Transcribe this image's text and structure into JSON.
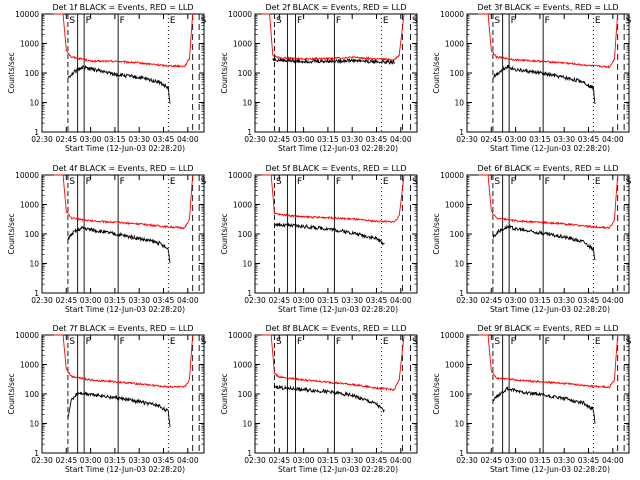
{
  "common": {
    "ylabel": "Counts/sec",
    "xlabel": "Start Time (12-Jun-03 02:28:20)",
    "x_ticks": [
      "02:30",
      "02:45",
      "03:00",
      "03:15",
      "03:30",
      "03:45",
      "04:00"
    ],
    "y_ticks": [
      "1",
      "10",
      "100",
      "1000",
      "10000"
    ],
    "series_colors": {
      "events": "#000000",
      "lld": "#ff0000"
    }
  },
  "chart_data": [
    {
      "type": "line",
      "title": "Det 1f BLACK = Events, RED = LLD",
      "marker_labels": [
        "S",
        "F",
        "F",
        "E",
        "S"
      ],
      "ylim": [
        1,
        10000
      ],
      "xlim": [
        "02:30",
        "04:10"
      ],
      "y_scale": "log",
      "series": [
        {
          "key": "lld",
          "color": "#ff0000",
          "points": [
            [
              "02:37",
              10000
            ],
            [
              "02:43",
              10000
            ],
            [
              "02:45",
              600
            ],
            [
              "02:48",
              350
            ],
            [
              "02:55",
              300
            ],
            [
              "03:00",
              250
            ],
            [
              "03:15",
              250
            ],
            [
              "03:30",
              220
            ],
            [
              "03:45",
              180
            ],
            [
              "03:58",
              170
            ],
            [
              "04:01",
              300
            ],
            [
              "04:03",
              10000
            ]
          ]
        },
        {
          "key": "events",
          "color": "#000000",
          "points": [
            [
              "02:46",
              70
            ],
            [
              "02:50",
              110
            ],
            [
              "02:55",
              160
            ],
            [
              "03:00",
              140
            ],
            [
              "03:15",
              90
            ],
            [
              "03:30",
              70
            ],
            [
              "03:42",
              50
            ],
            [
              "03:48",
              30
            ],
            [
              "03:49",
              8
            ]
          ]
        }
      ]
    },
    {
      "type": "line",
      "title": "Det 2f BLACK = Events, RED = LLD",
      "marker_labels": [
        "S",
        "F",
        "F",
        "E",
        "S"
      ],
      "ylim": [
        1,
        10000
      ],
      "xlim": [
        "02:30",
        "04:10"
      ],
      "y_scale": "log",
      "series": [
        {
          "key": "lld",
          "color": "#ff0000",
          "points": [
            [
              "02:34",
              10000
            ],
            [
              "02:39",
              10000
            ],
            [
              "02:41",
              400
            ],
            [
              "02:45",
              330
            ],
            [
              "03:00",
              300
            ],
            [
              "03:15",
              310
            ],
            [
              "03:30",
              340
            ],
            [
              "03:45",
              300
            ],
            [
              "03:56",
              280
            ],
            [
              "03:59",
              400
            ],
            [
              "04:02",
              10000
            ]
          ]
        },
        {
          "key": "events",
          "color": "#000000",
          "points": [
            [
              "02:41",
              300
            ],
            [
              "02:45",
              270
            ],
            [
              "03:00",
              250
            ],
            [
              "03:15",
              250
            ],
            [
              "03:30",
              270
            ],
            [
              "03:45",
              240
            ],
            [
              "03:56",
              230
            ]
          ]
        }
      ]
    },
    {
      "type": "line",
      "title": "Det 3f BLACK = Events, RED = LLD",
      "marker_labels": [
        "S",
        "F",
        "F",
        "E",
        "S"
      ],
      "ylim": [
        1,
        10000
      ],
      "xlim": [
        "02:30",
        "04:10"
      ],
      "y_scale": "log",
      "series": [
        {
          "key": "lld",
          "color": "#ff0000",
          "points": [
            [
              "02:37",
              10000
            ],
            [
              "02:43",
              10000
            ],
            [
              "02:45",
              600
            ],
            [
              "02:48",
              350
            ],
            [
              "03:00",
              280
            ],
            [
              "03:15",
              250
            ],
            [
              "03:30",
              220
            ],
            [
              "03:45",
              180
            ],
            [
              "03:58",
              160
            ],
            [
              "04:01",
              300
            ],
            [
              "04:03",
              10000
            ]
          ]
        },
        {
          "key": "events",
          "color": "#000000",
          "points": [
            [
              "02:46",
              70
            ],
            [
              "02:50",
              110
            ],
            [
              "02:55",
              170
            ],
            [
              "03:00",
              130
            ],
            [
              "03:15",
              100
            ],
            [
              "03:30",
              70
            ],
            [
              "03:42",
              50
            ],
            [
              "03:48",
              30
            ],
            [
              "03:49",
              10
            ]
          ]
        }
      ]
    },
    {
      "type": "line",
      "title": "Det 4f BLACK = Events, RED = LLD",
      "marker_labels": [
        "S",
        "F",
        "F",
        "E",
        "S"
      ],
      "ylim": [
        1,
        10000
      ],
      "xlim": [
        "02:30",
        "04:10"
      ],
      "y_scale": "log",
      "series": [
        {
          "key": "lld",
          "color": "#ff0000",
          "points": [
            [
              "02:37",
              10000
            ],
            [
              "02:43",
              10000
            ],
            [
              "02:45",
              600
            ],
            [
              "02:48",
              350
            ],
            [
              "03:00",
              280
            ],
            [
              "03:15",
              250
            ],
            [
              "03:30",
              220
            ],
            [
              "03:45",
              180
            ],
            [
              "03:58",
              160
            ],
            [
              "04:01",
              300
            ],
            [
              "04:03",
              10000
            ]
          ]
        },
        {
          "key": "events",
          "color": "#000000",
          "points": [
            [
              "02:46",
              70
            ],
            [
              "02:50",
              120
            ],
            [
              "02:55",
              160
            ],
            [
              "03:00",
              140
            ],
            [
              "03:15",
              100
            ],
            [
              "03:30",
              70
            ],
            [
              "03:42",
              50
            ],
            [
              "03:48",
              30
            ],
            [
              "03:49",
              10
            ]
          ]
        }
      ]
    },
    {
      "type": "line",
      "title": "Det 5f BLACK = Events, RED = LLD",
      "marker_labels": [
        "S",
        "F",
        "F",
        "E",
        "S"
      ],
      "ylim": [
        1,
        10000
      ],
      "xlim": [
        "02:30",
        "04:10"
      ],
      "y_scale": "log",
      "series": [
        {
          "key": "lld",
          "color": "#ff0000",
          "points": [
            [
              "02:34",
              10000
            ],
            [
              "02:40",
              10000
            ],
            [
              "02:42",
              500
            ],
            [
              "02:45",
              460
            ],
            [
              "03:00",
              380
            ],
            [
              "03:15",
              360
            ],
            [
              "03:30",
              320
            ],
            [
              "03:45",
              270
            ],
            [
              "03:56",
              260
            ],
            [
              "03:59",
              400
            ],
            [
              "04:02",
              10000
            ]
          ]
        },
        {
          "key": "events",
          "color": "#000000",
          "points": [
            [
              "02:42",
              220
            ],
            [
              "02:47",
              200
            ],
            [
              "03:00",
              180
            ],
            [
              "03:15",
              150
            ],
            [
              "03:30",
              110
            ],
            [
              "03:45",
              70
            ],
            [
              "03:50",
              45
            ]
          ]
        }
      ]
    },
    {
      "type": "line",
      "title": "Det 6f BLACK = Events, RED = LLD",
      "marker_labels": [
        "S",
        "F",
        "F",
        "E",
        "S"
      ],
      "ylim": [
        1,
        10000
      ],
      "xlim": [
        "02:30",
        "04:10"
      ],
      "y_scale": "log",
      "series": [
        {
          "key": "lld",
          "color": "#ff0000",
          "points": [
            [
              "02:37",
              10000
            ],
            [
              "02:43",
              10000
            ],
            [
              "02:45",
              600
            ],
            [
              "02:48",
              350
            ],
            [
              "03:00",
              280
            ],
            [
              "03:15",
              250
            ],
            [
              "03:30",
              220
            ],
            [
              "03:45",
              180
            ],
            [
              "03:58",
              160
            ],
            [
              "04:01",
              300
            ],
            [
              "04:03",
              10000
            ]
          ]
        },
        {
          "key": "events",
          "color": "#000000",
          "points": [
            [
              "02:46",
              80
            ],
            [
              "02:50",
              130
            ],
            [
              "02:55",
              180
            ],
            [
              "03:00",
              150
            ],
            [
              "03:15",
              110
            ],
            [
              "03:30",
              80
            ],
            [
              "03:42",
              55
            ],
            [
              "03:48",
              30
            ],
            [
              "03:49",
              12
            ]
          ]
        }
      ]
    },
    {
      "type": "line",
      "title": "Det 7f BLACK = Events, RED = LLD",
      "marker_labels": [
        "S",
        "F",
        "F",
        "E",
        "S"
      ],
      "ylim": [
        1,
        10000
      ],
      "xlim": [
        "02:30",
        "04:10"
      ],
      "y_scale": "log",
      "series": [
        {
          "key": "lld",
          "color": "#ff0000",
          "points": [
            [
              "02:37",
              10000
            ],
            [
              "02:43",
              10000
            ],
            [
              "02:45",
              700
            ],
            [
              "02:48",
              400
            ],
            [
              "03:00",
              300
            ],
            [
              "03:15",
              260
            ],
            [
              "03:30",
              220
            ],
            [
              "03:45",
              180
            ],
            [
              "03:58",
              170
            ],
            [
              "04:01",
              300
            ],
            [
              "04:03",
              10000
            ]
          ]
        },
        {
          "key": "events",
          "color": "#000000",
          "points": [
            [
              "02:46",
              15
            ],
            [
              "02:48",
              60
            ],
            [
              "02:52",
              110
            ],
            [
              "03:00",
              100
            ],
            [
              "03:15",
              75
            ],
            [
              "03:30",
              55
            ],
            [
              "03:42",
              40
            ],
            [
              "03:48",
              25
            ],
            [
              "03:49",
              8
            ]
          ]
        }
      ]
    },
    {
      "type": "line",
      "title": "Det 8f BLACK = Events, RED = LLD",
      "marker_labels": [
        "S",
        "F",
        "F",
        "E",
        "S"
      ],
      "ylim": [
        1,
        10000
      ],
      "xlim": [
        "02:30",
        "04:10"
      ],
      "y_scale": "log",
      "series": [
        {
          "key": "lld",
          "color": "#ff0000",
          "points": [
            [
              "02:34",
              10000
            ],
            [
              "02:40",
              10000
            ],
            [
              "02:42",
              500
            ],
            [
              "02:45",
              380
            ],
            [
              "03:00",
              300
            ],
            [
              "03:15",
              250
            ],
            [
              "03:30",
              210
            ],
            [
              "03:45",
              160
            ],
            [
              "03:56",
              140
            ],
            [
              "03:59",
              300
            ],
            [
              "04:02",
              10000
            ]
          ]
        },
        {
          "key": "events",
          "color": "#000000",
          "points": [
            [
              "02:42",
              180
            ],
            [
              "02:47",
              160
            ],
            [
              "03:00",
              140
            ],
            [
              "03:15",
              120
            ],
            [
              "03:30",
              90
            ],
            [
              "03:45",
              45
            ],
            [
              "03:50",
              25
            ]
          ]
        }
      ]
    },
    {
      "type": "line",
      "title": "Det 9f BLACK = Events, RED = LLD",
      "marker_labels": [
        "S",
        "F",
        "F",
        "E",
        "S"
      ],
      "ylim": [
        1,
        10000
      ],
      "xlim": [
        "02:30",
        "04:10"
      ],
      "y_scale": "log",
      "series": [
        {
          "key": "lld",
          "color": "#ff0000",
          "points": [
            [
              "02:37",
              10000
            ],
            [
              "02:43",
              10000
            ],
            [
              "02:45",
              600
            ],
            [
              "02:48",
              350
            ],
            [
              "03:00",
              300
            ],
            [
              "03:15",
              260
            ],
            [
              "03:30",
              230
            ],
            [
              "03:45",
              190
            ],
            [
              "03:58",
              170
            ],
            [
              "04:01",
              300
            ],
            [
              "04:03",
              10000
            ]
          ]
        },
        {
          "key": "events",
          "color": "#000000",
          "points": [
            [
              "02:46",
              60
            ],
            [
              "02:50",
              100
            ],
            [
              "02:55",
              150
            ],
            [
              "03:00",
              130
            ],
            [
              "03:15",
              95
            ],
            [
              "03:30",
              70
            ],
            [
              "03:42",
              50
            ],
            [
              "03:48",
              30
            ],
            [
              "03:49",
              10
            ]
          ]
        }
      ]
    }
  ]
}
